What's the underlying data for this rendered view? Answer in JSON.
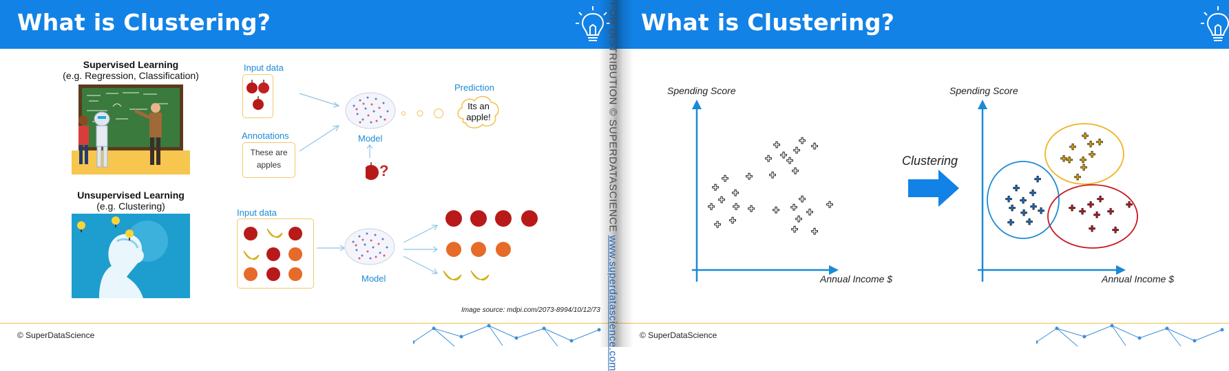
{
  "left_slide": {
    "title": "What is Clustering?",
    "supervised": {
      "title": "Supervised Learning",
      "subtitle": "(e.g. Regression, Classification)",
      "input_label": "Input data",
      "annotations_label": "Annotations",
      "annotation_text_1": "These are",
      "annotation_text_2": "apples",
      "model_label": "Model",
      "prediction_label": "Prediction",
      "prediction_text_1": "Its an",
      "prediction_text_2": "apple!",
      "question_mark": "?"
    },
    "unsupervised": {
      "title": "Unsupervised Learning",
      "subtitle": "(e.g. Clustering)",
      "input_label": "Input data",
      "model_label": "Model"
    },
    "image_source": "Image source: mdpi.com/2073-8994/10/12/73",
    "footer": "© SuperDataScience"
  },
  "watermark": {
    "text": "NOT FOR DISTRIBUTION © SUPERDATASCIENCE ",
    "url": "www.superdatascience.com"
  },
  "right_slide": {
    "title": "What is Clustering?",
    "left_plot": {
      "ylabel": "Spending Score",
      "xlabel": "Annual Income $"
    },
    "arrow_label": "Clustering",
    "right_plot": {
      "ylabel": "Spending Score",
      "xlabel": "Annual Income $"
    },
    "cluster_colors": {
      "yellow": "#e0a600",
      "blue": "#1a6fc2",
      "red": "#c8171e"
    },
    "footer": "© SuperDataScience"
  },
  "colors": {
    "banner": "#1282e6",
    "accent": "#1a8ad6",
    "footer_line": "#f3c04a"
  }
}
